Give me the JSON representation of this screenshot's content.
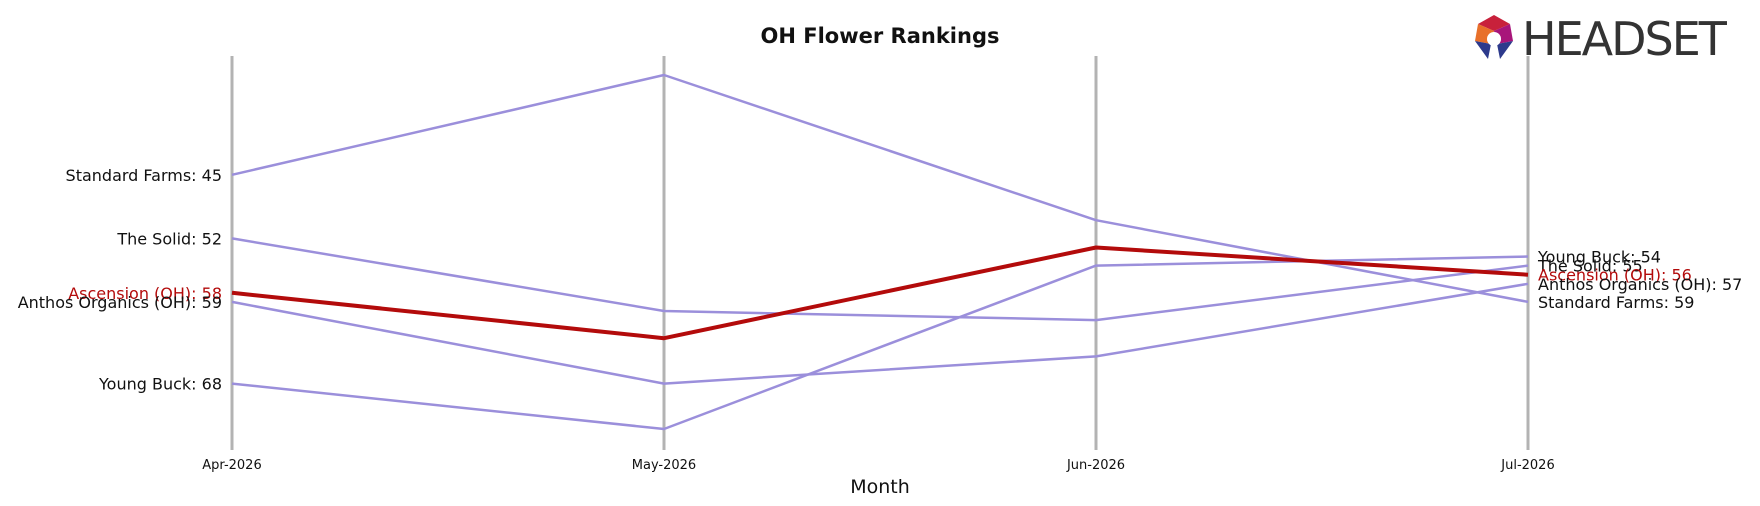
{
  "logo": {
    "text": "HEADSET"
  },
  "chart_data": {
    "type": "line",
    "title": "OH Flower Rankings",
    "xlabel": "Month",
    "ylabel": "",
    "x": [
      "Apr-2026",
      "May-2026",
      "Jun-2026",
      "Jul-2026"
    ],
    "y_inverted": true,
    "grid": false,
    "legend": "none",
    "series": [
      {
        "name": "Standard Farms",
        "values": [
          45,
          34,
          50,
          59
        ],
        "color": "#9b8fdb",
        "highlight": false
      },
      {
        "name": "The Solid",
        "values": [
          52,
          60,
          61,
          55
        ],
        "color": "#9b8fdb",
        "highlight": false
      },
      {
        "name": "Ascension (OH)",
        "values": [
          58,
          63,
          53,
          56
        ],
        "color": "#b30b0b",
        "highlight": true
      },
      {
        "name": "Anthos Organics (OH)",
        "values": [
          59,
          68,
          65,
          57
        ],
        "color": "#9b8fdb",
        "highlight": false
      },
      {
        "name": "Young Buck",
        "values": [
          68,
          73,
          55,
          54
        ],
        "color": "#9b8fdb",
        "highlight": false
      }
    ]
  }
}
